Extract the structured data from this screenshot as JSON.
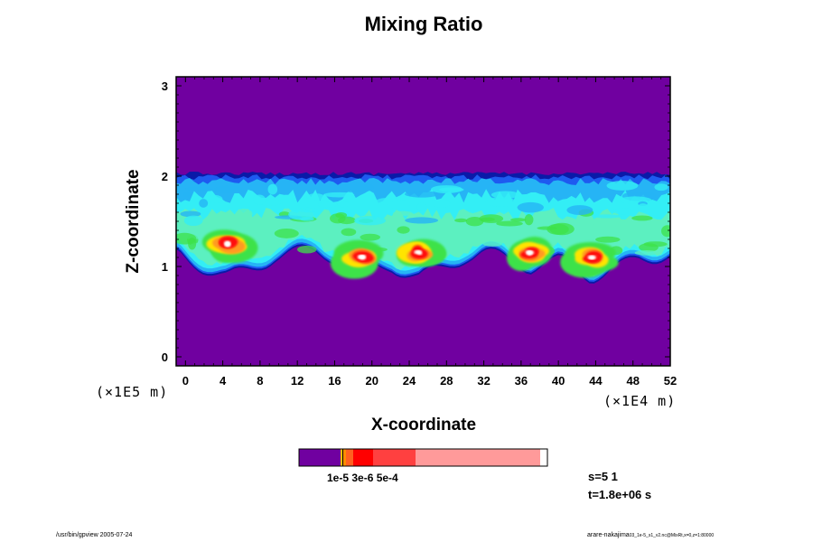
{
  "chart_data": {
    "type": "heatmap",
    "title": "Mixing Ratio",
    "xlabel": "X-coordinate",
    "ylabel": "Z-coordinate",
    "x_unit": "(×1E4 m)",
    "y_unit": "(×1E5 m)",
    "xlim": [
      -1,
      52
    ],
    "ylim": [
      -0.1,
      3.1
    ],
    "x_ticks": [
      "0",
      "4",
      "8",
      "12",
      "16",
      "20",
      "24",
      "28",
      "32",
      "36",
      "40",
      "44",
      "48",
      "52"
    ],
    "y_ticks": [
      "0",
      "1",
      "2",
      "3"
    ],
    "x_tick_values": [
      0,
      4,
      8,
      12,
      16,
      20,
      24,
      28,
      32,
      36,
      40,
      44,
      48,
      52
    ],
    "y_tick_values": [
      0,
      1,
      2,
      3
    ],
    "background_level_color": "#7000a0",
    "cloud_layer": {
      "z_bottom": 0.95,
      "z_top": 2.0
    },
    "convective_cells": [
      {
        "x": 4.5,
        "z": 1.25
      },
      {
        "x": 19,
        "z": 1.1
      },
      {
        "x": 25,
        "z": 1.15
      },
      {
        "x": 37,
        "z": 1.15
      },
      {
        "x": 43.5,
        "z": 1.1
      }
    ],
    "colorbar": {
      "colors": [
        "#7000a0",
        "#ffc000",
        "#ff8c00",
        "#ff6020",
        "#ff0000",
        "#ff4040",
        "#ff9a9a"
      ],
      "label": "1e-5 3e-6 5e-4"
    }
  },
  "info": {
    "s": "s=5 1",
    "t": "t=1.8e+06 s"
  },
  "footer": {
    "left": "/usr/bin/gpview 2005-07-24",
    "right_main": "arare-nakajima",
    "right_small": "03_1e-5_s1_v2.nc@MixRt,x=0,z=1:80000"
  },
  "palette": {
    "purple": "#7000a0",
    "navy": "#0a1aa8",
    "blue": "#1e5af0",
    "sky": "#26b4f5",
    "cyan": "#33eef5",
    "aqua": "#5cf0c0",
    "lime": "#3ee24a",
    "yellow": "#ffe400",
    "red": "#ff1010",
    "white": "#ffffff"
  }
}
